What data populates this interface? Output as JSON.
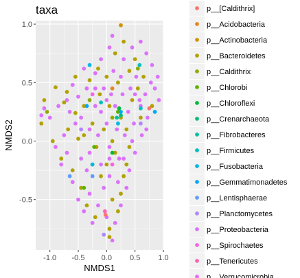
{
  "chart_data": {
    "type": "scatter",
    "title": "taxa",
    "xlabel": "NMDS1",
    "ylabel": "NMDS2",
    "xlim": [
      -1.25,
      1.0
    ],
    "ylim": [
      -0.93,
      1.03
    ],
    "xticks": [
      -1.0,
      -0.5,
      0.0,
      0.5,
      1.0
    ],
    "xtick_labels": [
      "-1.0",
      "-0.5",
      "0.0",
      "0.5",
      "1.0"
    ],
    "yticks": [
      -0.5,
      0.0,
      0.5,
      1.0
    ],
    "ytick_labels": [
      "-0.5",
      "0.0",
      "0.5",
      "1.0"
    ],
    "grid": true,
    "legend_position": "right",
    "panel_background": "#ebebeb",
    "grid_color": "#ffffff",
    "series": [
      {
        "name": "p__[Caldithrix]",
        "color": "#F8766D",
        "points": [
          [
            0.75,
            0.28
          ],
          [
            -0.02,
            -0.63
          ]
        ]
      },
      {
        "name": "p__Acidobacteria",
        "color": "#E7851E",
        "points": [
          [
            0.1,
            0.45
          ]
        ]
      },
      {
        "name": "p__Actinobacteria",
        "color": "#D09400",
        "points": [
          [
            0.25,
            0.99
          ]
        ]
      },
      {
        "name": "p__Bacteroidetes",
        "color": "#B2A100",
        "points": [
          [
            -1.1,
            0.35
          ],
          [
            -0.9,
            0.46
          ],
          [
            -0.75,
            0.33
          ],
          [
            -0.68,
            0.1
          ],
          [
            -0.55,
            0.24
          ],
          [
            -0.5,
            0.02
          ],
          [
            -0.4,
            0.3
          ],
          [
            -0.3,
            0.52
          ],
          [
            -0.25,
            0.15
          ],
          [
            -0.18,
            -0.05
          ],
          [
            -0.12,
            0.4
          ],
          [
            -0.05,
            0.1
          ],
          [
            0.0,
            -0.2
          ],
          [
            0.05,
            0.3
          ],
          [
            0.1,
            0.0
          ],
          [
            0.15,
            -0.1
          ],
          [
            0.2,
            0.5
          ],
          [
            0.25,
            0.2
          ],
          [
            0.3,
            -0.3
          ],
          [
            0.35,
            0.1
          ],
          [
            0.4,
            0.6
          ],
          [
            0.45,
            0.35
          ],
          [
            0.5,
            0.7
          ],
          [
            0.55,
            0.45
          ],
          [
            0.6,
            0.2
          ],
          [
            -0.6,
            -0.25
          ],
          [
            -0.45,
            -0.4
          ],
          [
            -0.35,
            -0.55
          ],
          [
            -0.2,
            -0.65
          ],
          [
            -0.1,
            -0.3
          ],
          [
            0.05,
            -0.75
          ],
          [
            0.1,
            -0.5
          ],
          [
            0.2,
            -0.6
          ],
          [
            0.25,
            -0.45
          ],
          [
            0.35,
            -0.2
          ],
          [
            -0.8,
            -0.15
          ],
          [
            -0.95,
            0.0
          ],
          [
            -0.7,
            0.42
          ],
          [
            -0.15,
            0.62
          ],
          [
            0.15,
            0.75
          ],
          [
            0.3,
            0.85
          ],
          [
            -0.25,
            -0.2
          ],
          [
            0.0,
            0.55
          ],
          [
            0.4,
            -0.05
          ],
          [
            0.05,
            -0.82
          ],
          [
            -0.4,
            0.05
          ],
          [
            0.65,
            0.55
          ],
          [
            0.8,
            0.3
          ],
          [
            -1.15,
            0.15
          ],
          [
            -0.55,
            0.55
          ]
        ]
      },
      {
        "name": "p__Caldithrix",
        "color": "#8EAB00",
        "points": [
          [
            0.1,
            0.2
          ],
          [
            -0.3,
            0.35
          ],
          [
            0.55,
            0.62
          ],
          [
            -1.05,
            0.25
          ]
        ]
      },
      {
        "name": "p__Chlorobi",
        "color": "#5BB300",
        "points": [
          [
            0.2,
            0.25
          ],
          [
            -0.4,
            -0.4
          ],
          [
            -0.22,
            -0.05
          ]
        ]
      },
      {
        "name": "p__Chloroflexi",
        "color": "#00BA38",
        "points": [
          [
            0.22,
            0.28
          ],
          [
            0.1,
            -0.1
          ]
        ]
      },
      {
        "name": "p__Crenarchaeota",
        "color": "#00BF74",
        "points": [
          [
            0.25,
            0.22
          ]
        ]
      },
      {
        "name": "p__Fibrobacteres",
        "color": "#00C19F",
        "points": [
          [
            0.18,
            0.2
          ]
        ]
      },
      {
        "name": "p__Firmicutes",
        "color": "#00BFC4",
        "points": [
          [
            0.6,
            0.28
          ],
          [
            -0.1,
            0.33
          ],
          [
            0.58,
            0.65
          ]
        ]
      },
      {
        "name": "p__Fusobacteria",
        "color": "#00B8E7",
        "points": [
          [
            -0.3,
            0.65
          ],
          [
            -0.25,
            -0.2
          ],
          [
            0.2,
            0.15
          ]
        ]
      },
      {
        "name": "p__Gemmatimonadetes",
        "color": "#00A9FF",
        "points": [
          [
            0.85,
            0.25
          ],
          [
            0.25,
            0.25
          ],
          [
            -0.35,
            0.3
          ]
        ]
      },
      {
        "name": "p__Lentisphaerae",
        "color": "#619CFF",
        "points": [
          [
            -0.65,
            -0.3
          ],
          [
            -0.25,
            -0.3
          ]
        ]
      },
      {
        "name": "p__Planctomycetes",
        "color": "#AE87FF",
        "points": [
          [
            -0.05,
            -0.8
          ],
          [
            0.6,
            0.15
          ],
          [
            -0.45,
            0.1
          ]
        ]
      },
      {
        "name": "p__Proteobacteria",
        "color": "#DB72FB",
        "points": [
          [
            -1.0,
            0.2
          ],
          [
            -0.85,
            0.3
          ],
          [
            -0.75,
            0.05
          ],
          [
            -0.65,
            0.25
          ],
          [
            -0.6,
            0.48
          ],
          [
            -0.5,
            0.38
          ],
          [
            -0.45,
            0.2
          ],
          [
            -0.35,
            0.45
          ],
          [
            -0.3,
            0.1
          ],
          [
            -0.2,
            0.3
          ],
          [
            -0.15,
            0.05
          ],
          [
            -0.1,
            0.25
          ],
          [
            -0.05,
            0.45
          ],
          [
            0.0,
            0.15
          ],
          [
            0.05,
            -0.05
          ],
          [
            0.08,
            0.4
          ],
          [
            0.12,
            0.6
          ],
          [
            0.18,
            0.1
          ],
          [
            0.22,
            -0.15
          ],
          [
            0.28,
            0.4
          ],
          [
            0.32,
            0.05
          ],
          [
            0.38,
            0.25
          ],
          [
            0.42,
            0.45
          ],
          [
            0.48,
            0.15
          ],
          [
            0.52,
            0.55
          ],
          [
            0.58,
            0.35
          ],
          [
            0.62,
            0.05
          ],
          [
            0.68,
            0.4
          ],
          [
            0.72,
            0.2
          ],
          [
            0.78,
            0.5
          ],
          [
            0.85,
            0.45
          ],
          [
            0.9,
            0.55
          ],
          [
            0.92,
            0.35
          ],
          [
            0.7,
            0.75
          ],
          [
            0.6,
            0.85
          ],
          [
            0.45,
            0.8
          ],
          [
            0.3,
            0.7
          ],
          [
            0.1,
            0.9
          ],
          [
            0.05,
            0.8
          ],
          [
            -0.1,
            0.7
          ],
          [
            -0.2,
            0.58
          ],
          [
            -0.4,
            0.62
          ],
          [
            -0.55,
            0.15
          ],
          [
            -0.7,
            -0.1
          ],
          [
            -0.8,
            -0.2
          ],
          [
            -0.9,
            -0.05
          ],
          [
            -1.1,
            0.28
          ],
          [
            -1.15,
            0.22
          ],
          [
            -0.6,
            -0.35
          ],
          [
            -0.5,
            -0.5
          ],
          [
            -0.4,
            -0.6
          ],
          [
            -0.3,
            -0.45
          ],
          [
            -0.25,
            -0.7
          ],
          [
            -0.15,
            -0.55
          ],
          [
            -0.1,
            -0.2
          ],
          [
            -0.05,
            -0.4
          ],
          [
            0.0,
            -0.65
          ],
          [
            0.05,
            -0.3
          ],
          [
            0.1,
            -0.85
          ],
          [
            0.15,
            -0.7
          ],
          [
            0.2,
            -0.35
          ],
          [
            0.25,
            -0.55
          ],
          [
            0.3,
            -0.15
          ],
          [
            0.35,
            -0.4
          ],
          [
            0.4,
            -0.25
          ],
          [
            0.45,
            0.0
          ],
          [
            0.5,
            -0.1
          ],
          [
            0.15,
            0.3
          ],
          [
            -0.3,
            -0.1
          ],
          [
            -0.45,
            -0.15
          ],
          [
            0.6,
            0.3
          ],
          [
            0.7,
            0.1
          ],
          [
            -0.7,
            0.35
          ],
          [
            -0.2,
            0.45
          ],
          [
            0.0,
            0.35
          ],
          [
            0.25,
            0.55
          ],
          [
            0.5,
            0.4
          ],
          [
            0.8,
            0.65
          ],
          [
            -0.35,
            -0.25
          ],
          [
            0.05,
            -0.15
          ]
        ]
      },
      {
        "name": "p__Spirochaetes",
        "color": "#F564E3",
        "points": [
          [
            -0.25,
            0.4
          ],
          [
            0.1,
            -0.2
          ]
        ]
      },
      {
        "name": "p__Tenericutes",
        "color": "#FF64B0",
        "points": [
          [
            -0.03,
            -0.6
          ]
        ]
      },
      {
        "name": "p__Verrucomicrobia",
        "color": "#E76BF3",
        "points": []
      }
    ]
  },
  "legend": {
    "items": [
      {
        "label": "p__[Caldithrix]",
        "color": "#F8766D"
      },
      {
        "label": "p__Acidobacteria",
        "color": "#E7851E"
      },
      {
        "label": "p__Actinobacteria",
        "color": "#D09400"
      },
      {
        "label": "p__Bacteroidetes",
        "color": "#B2A100"
      },
      {
        "label": "p__Caldithrix",
        "color": "#8EAB00"
      },
      {
        "label": "p__Chlorobi",
        "color": "#5BB300"
      },
      {
        "label": "p__Chloroflexi",
        "color": "#00BA38"
      },
      {
        "label": "p__Crenarchaeota",
        "color": "#00BF74"
      },
      {
        "label": "p__Fibrobacteres",
        "color": "#00C19F"
      },
      {
        "label": "p__Firmicutes",
        "color": "#00BFC4"
      },
      {
        "label": "p__Fusobacteria",
        "color": "#00B8E7"
      },
      {
        "label": "p__Gemmatimonadetes",
        "color": "#00A9FF"
      },
      {
        "label": "p__Lentisphaerae",
        "color": "#619CFF"
      },
      {
        "label": "p__Planctomycetes",
        "color": "#AE87FF"
      },
      {
        "label": "p__Proteobacteria",
        "color": "#DB72FB"
      },
      {
        "label": "p__Spirochaetes",
        "color": "#F564E3"
      },
      {
        "label": "p__Tenericutes",
        "color": "#FF64B0"
      },
      {
        "label": "p__Verrucomicrobia",
        "color": "#E76BF3"
      }
    ]
  }
}
